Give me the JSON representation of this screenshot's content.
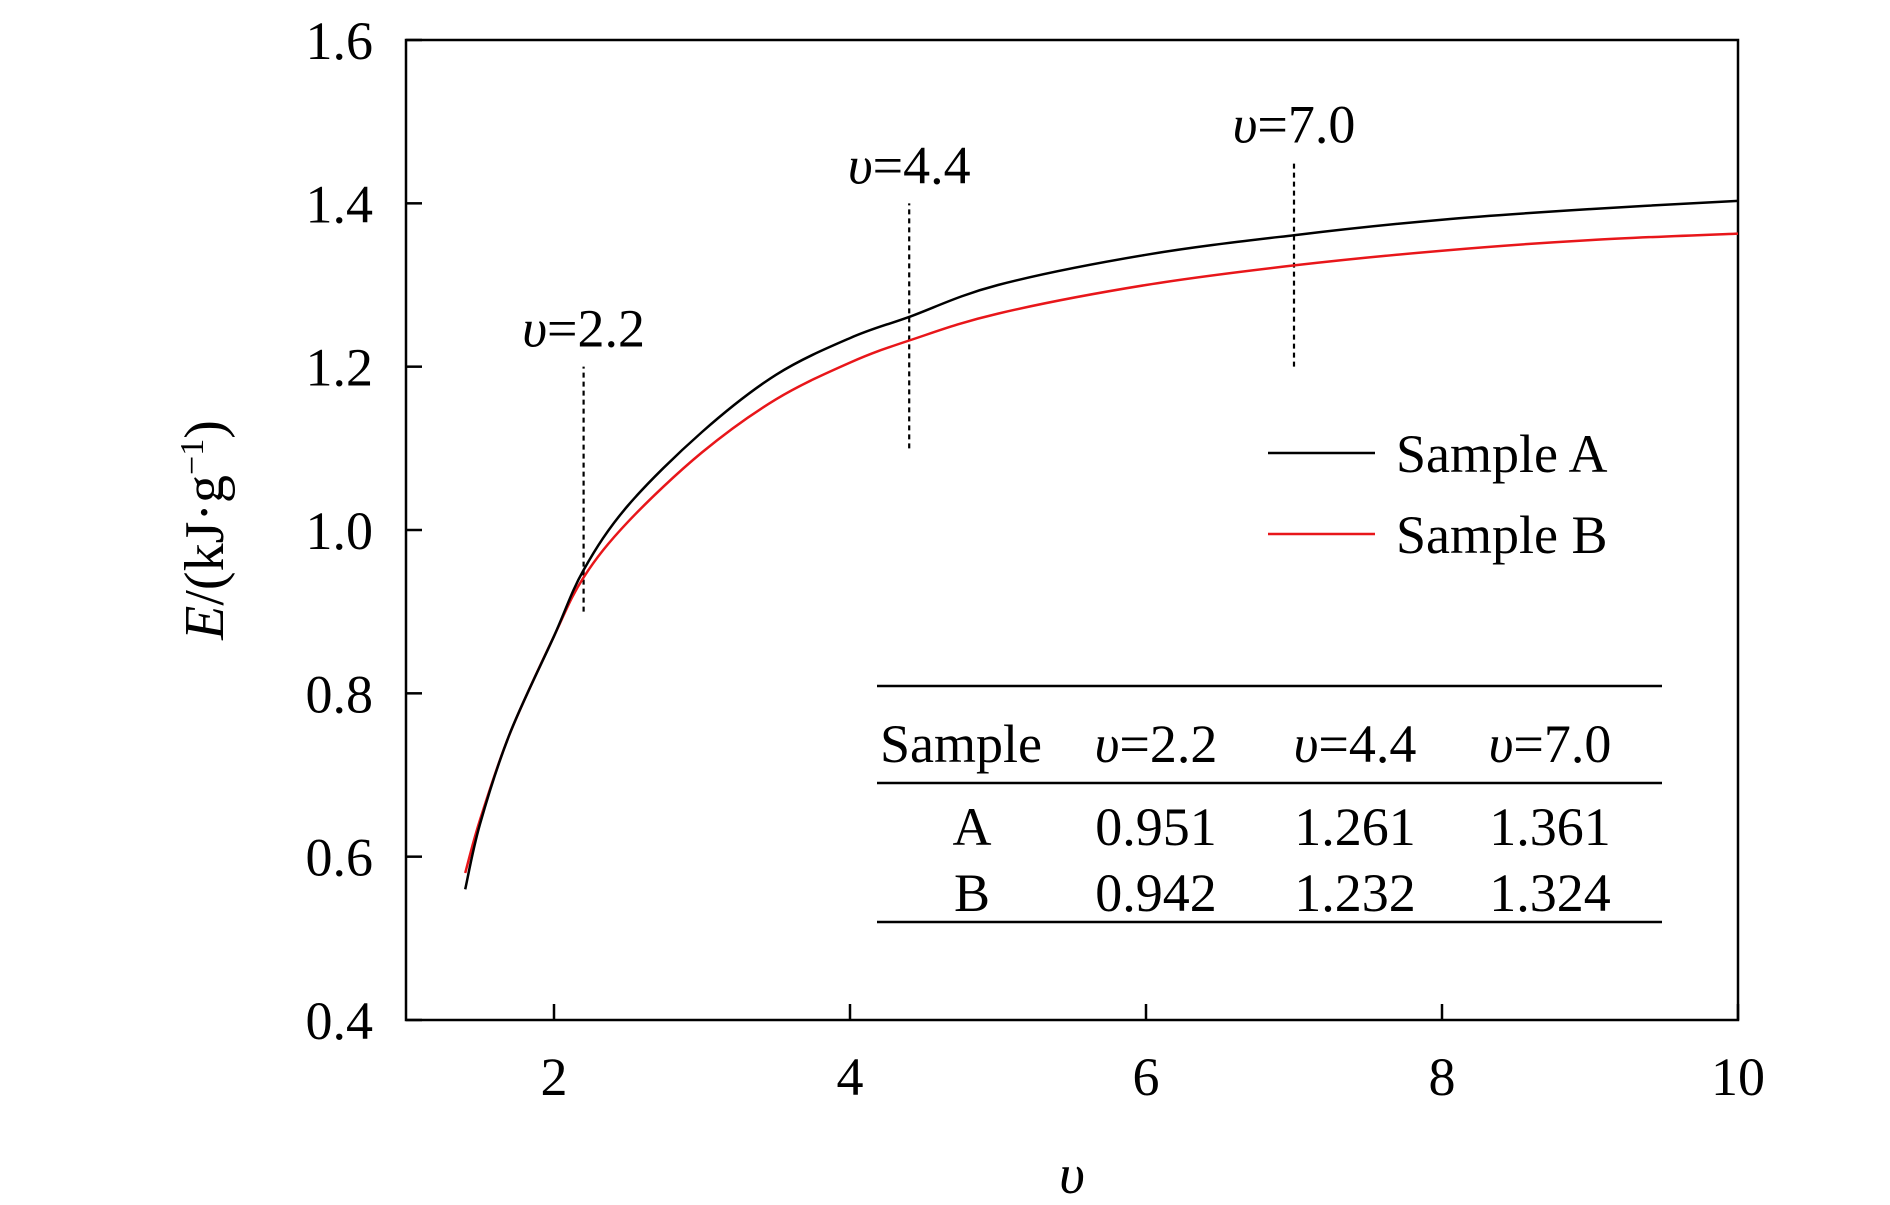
{
  "chart_data": {
    "type": "line",
    "xlabel": "υ",
    "ylabel": {
      "symbol": "E",
      "unit": "/(kJ·g",
      "exp": "−1",
      "close": ")"
    },
    "xlim": [
      1,
      10
    ],
    "ylim": [
      0.4,
      1.6
    ],
    "xticks": [
      "2",
      "4",
      "6",
      "8",
      "10"
    ],
    "yticks": [
      "0.4",
      "0.6",
      "0.8",
      "1.0",
      "1.2",
      "1.4",
      "1.6"
    ],
    "grid": false,
    "legend": {
      "position": "right-middle"
    },
    "series": [
      {
        "name": "Sample A",
        "color": "#000000",
        "x": [
          1.4,
          1.5,
          1.7,
          2.0,
          2.2,
          2.5,
          3.0,
          3.5,
          4.0,
          4.4,
          5.0,
          6.0,
          7.0,
          8.0,
          9.0,
          10.0
        ],
        "y": [
          0.56,
          0.64,
          0.75,
          0.87,
          0.951,
          1.03,
          1.12,
          1.19,
          1.235,
          1.261,
          1.3,
          1.337,
          1.361,
          1.38,
          1.393,
          1.403
        ]
      },
      {
        "name": "Sample B",
        "color": "#e8161a",
        "x": [
          1.4,
          1.5,
          1.7,
          2.0,
          2.2,
          2.5,
          3.0,
          3.5,
          4.0,
          4.4,
          5.0,
          6.0,
          7.0,
          8.0,
          9.0,
          10.0
        ],
        "y": [
          0.58,
          0.645,
          0.75,
          0.87,
          0.942,
          1.01,
          1.095,
          1.16,
          1.205,
          1.232,
          1.265,
          1.3,
          1.324,
          1.342,
          1.355,
          1.363
        ]
      }
    ],
    "annotations": [
      {
        "sym": "υ",
        "text": "=2.2",
        "x": 2.2,
        "y_from": 0.9,
        "y_to": 1.2
      },
      {
        "sym": "υ",
        "text": "=4.4",
        "x": 4.4,
        "y_from": 1.1,
        "y_to": 1.4
      },
      {
        "sym": "υ",
        "text": "=7.0",
        "x": 7.0,
        "y_from": 1.2,
        "y_to": 1.45
      }
    ],
    "table": {
      "header": {
        "first": "Sample",
        "cols": [
          {
            "sym": "υ",
            "text": "=2.2"
          },
          {
            "sym": "υ",
            "text": "=4.4"
          },
          {
            "sym": "υ",
            "text": "=7.0"
          }
        ]
      },
      "rows": [
        {
          "label": "A",
          "values": [
            "0.951",
            "1.261",
            "1.361"
          ]
        },
        {
          "label": "B",
          "values": [
            "0.942",
            "1.232",
            "1.324"
          ]
        }
      ]
    }
  }
}
